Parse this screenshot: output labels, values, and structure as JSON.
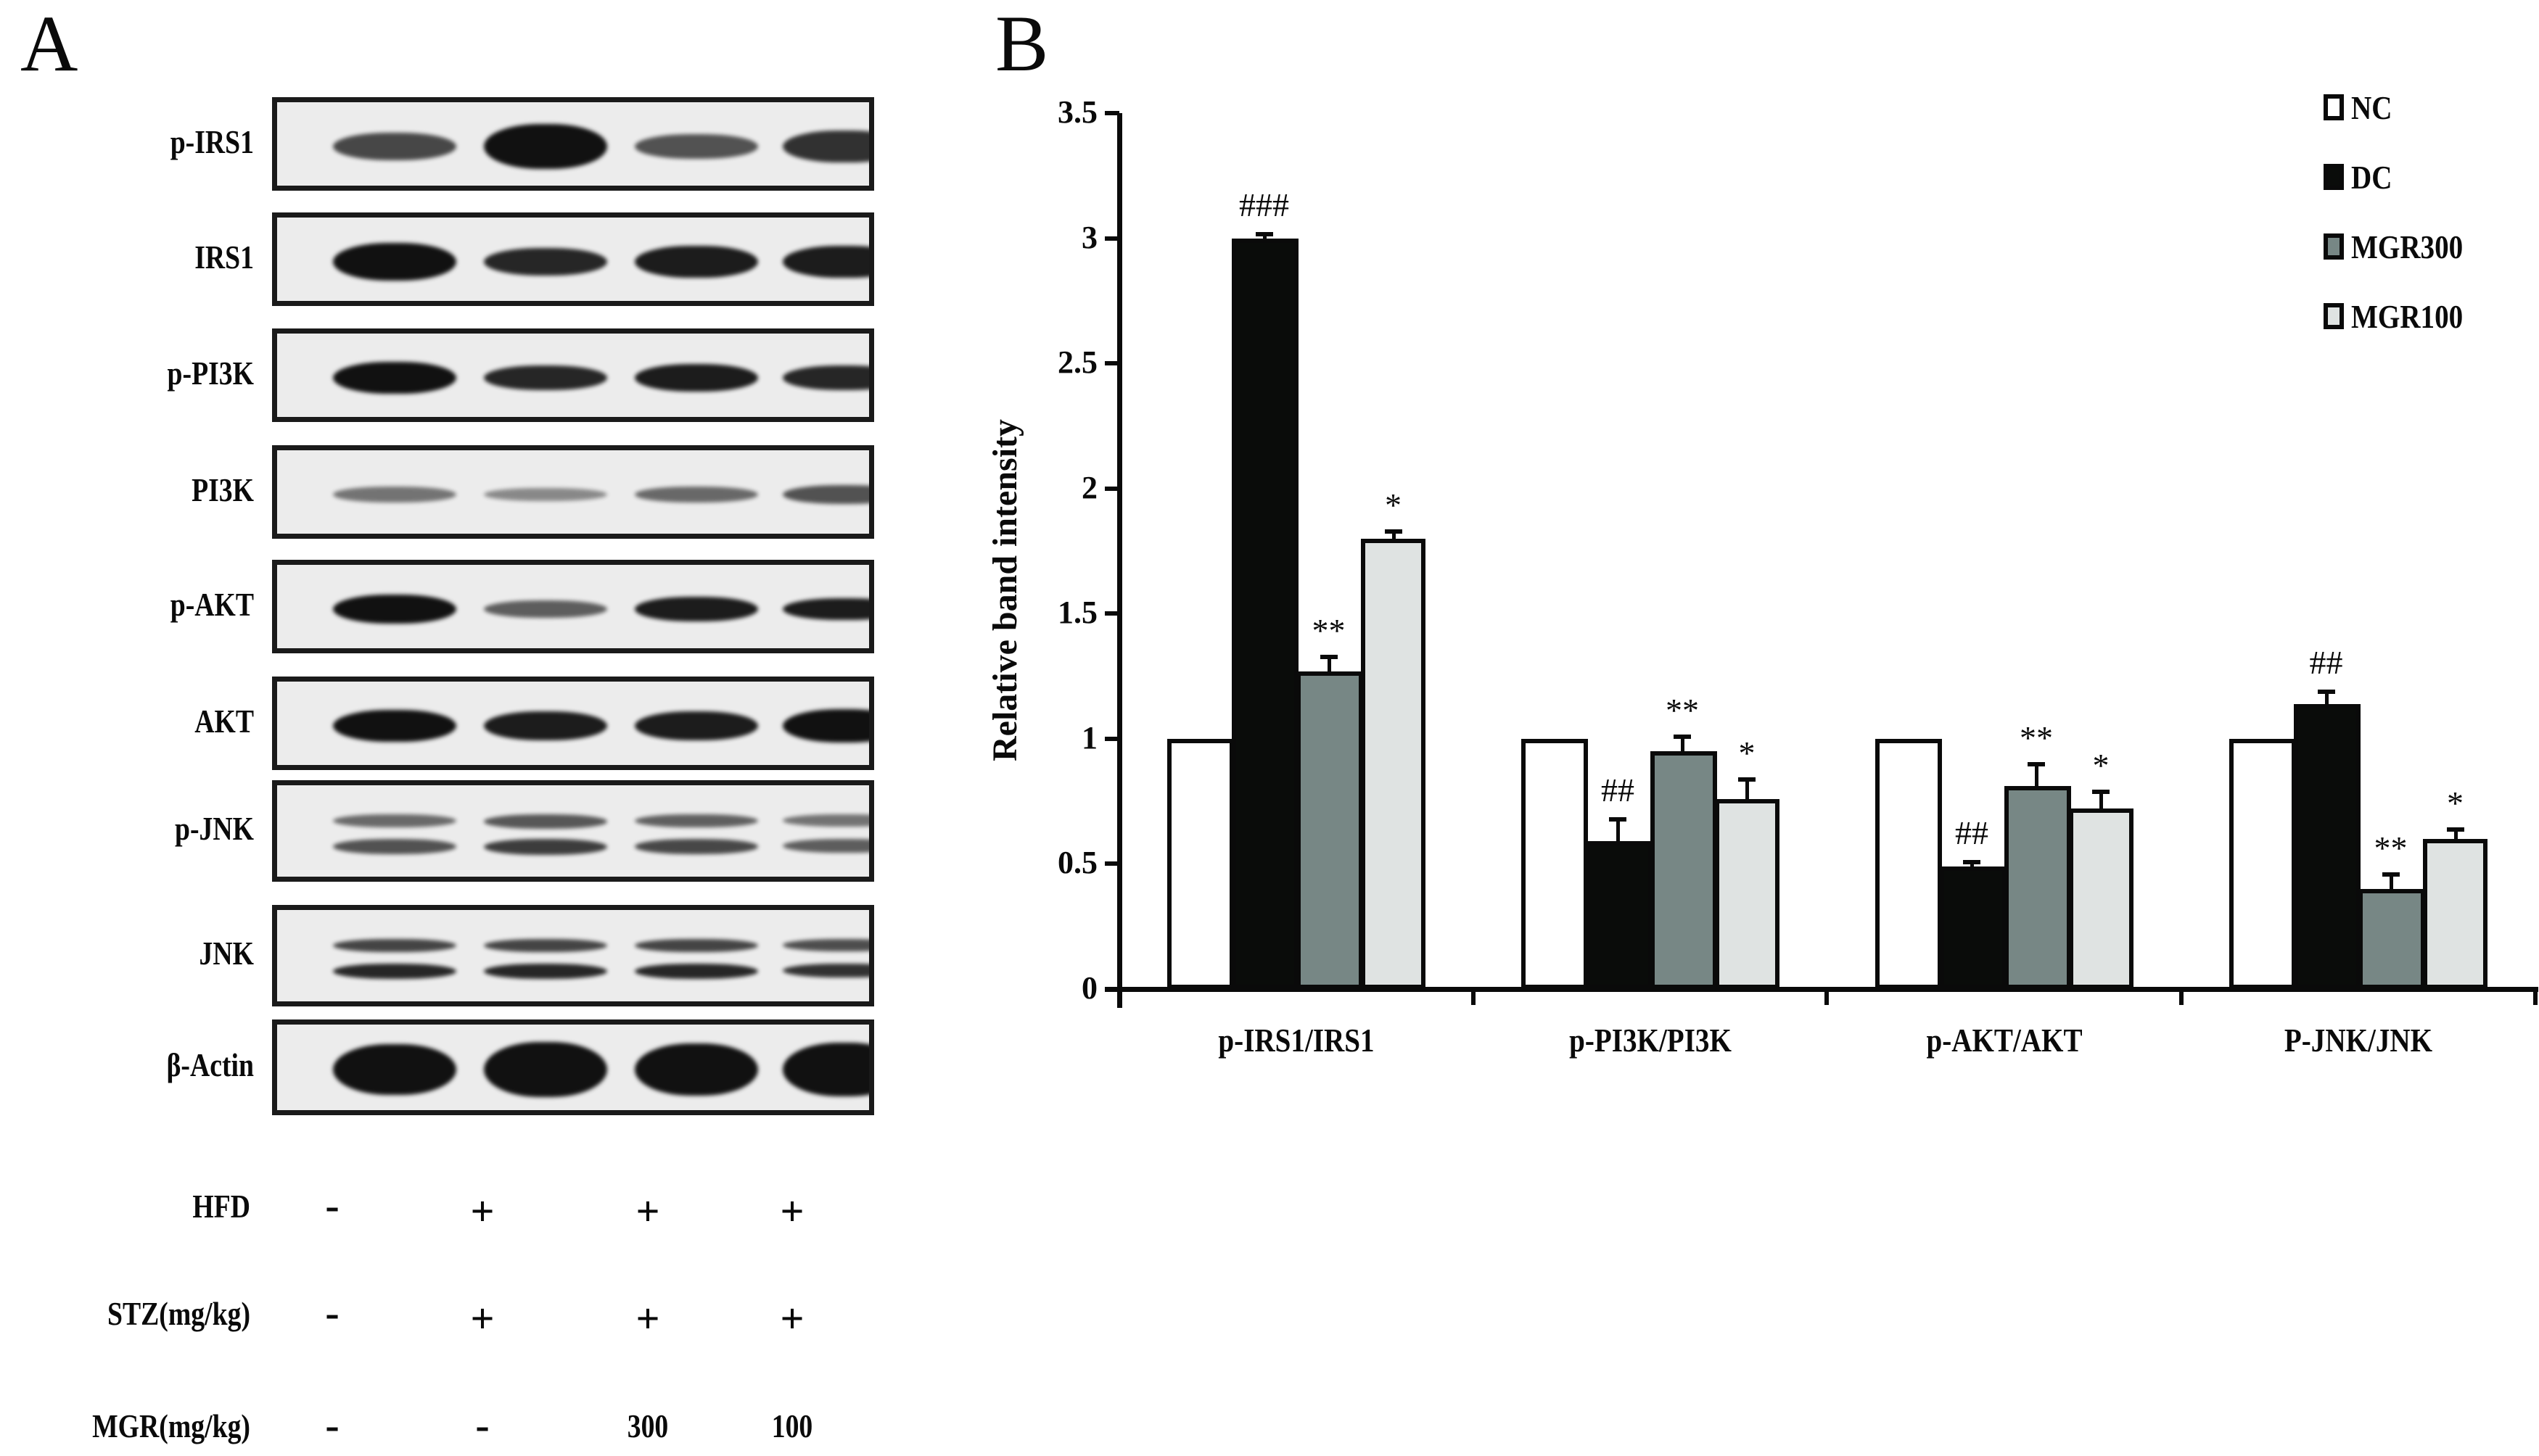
{
  "panel_a": {
    "letter": "A",
    "blots": [
      {
        "label": "p-IRS1"
      },
      {
        "label": "IRS1"
      },
      {
        "label": "p-PI3K"
      },
      {
        "label": "PI3K"
      },
      {
        "label": "p-AKT"
      },
      {
        "label": "AKT"
      },
      {
        "label": "p-JNK"
      },
      {
        "label": "JNK"
      },
      {
        "label": "β-Actin"
      }
    ],
    "treatments": [
      {
        "label": "HFD",
        "values": [
          "-",
          "+",
          "+",
          "+"
        ]
      },
      {
        "label": "STZ(mg/kg)",
        "values": [
          "-",
          "+",
          "+",
          "+"
        ]
      },
      {
        "label": "MGR(mg/kg)",
        "values": [
          "-",
          "-",
          "300",
          "100"
        ]
      }
    ]
  },
  "panel_b": {
    "letter": "B"
  },
  "chart_data": {
    "type": "bar",
    "title": "",
    "xlabel": "",
    "ylabel": "Relative band intensity",
    "ylim": [
      0,
      3.5
    ],
    "yticks": [
      "0",
      "0.5",
      "1",
      "1.5",
      "2",
      "2.5",
      "3",
      "3.5"
    ],
    "grid": false,
    "legend_position": "top-right",
    "categories": [
      "p-IRS1/IRS1",
      "p-PI3K/PI3K",
      "p-AKT/AKT",
      "P-JNK/JNK"
    ],
    "series": [
      {
        "name": "NC",
        "color": "#ffffff",
        "values": [
          1.0,
          1.0,
          1.0,
          1.0
        ],
        "errors": [
          0,
          0,
          0,
          0
        ],
        "annotations": [
          "",
          "",
          "",
          ""
        ]
      },
      {
        "name": "DC",
        "color": "#0a0c0a",
        "values": [
          3.0,
          0.59,
          0.49,
          1.14
        ],
        "errors": [
          0.02,
          0.09,
          0.02,
          0.05
        ],
        "annotations": [
          "###",
          "##",
          "##",
          "##"
        ]
      },
      {
        "name": "MGR300",
        "color": "#778785",
        "values": [
          1.27,
          0.95,
          0.81,
          0.4
        ],
        "errors": [
          0.06,
          0.06,
          0.09,
          0.06
        ],
        "annotations": [
          "**",
          "**",
          "**",
          "**"
        ]
      },
      {
        "name": "MGR100",
        "color": "#dfe3e2",
        "values": [
          1.8,
          0.76,
          0.72,
          0.6
        ],
        "errors": [
          0.03,
          0.08,
          0.07,
          0.04
        ],
        "annotations": [
          "*",
          "*",
          "*",
          "*"
        ]
      }
    ]
  }
}
